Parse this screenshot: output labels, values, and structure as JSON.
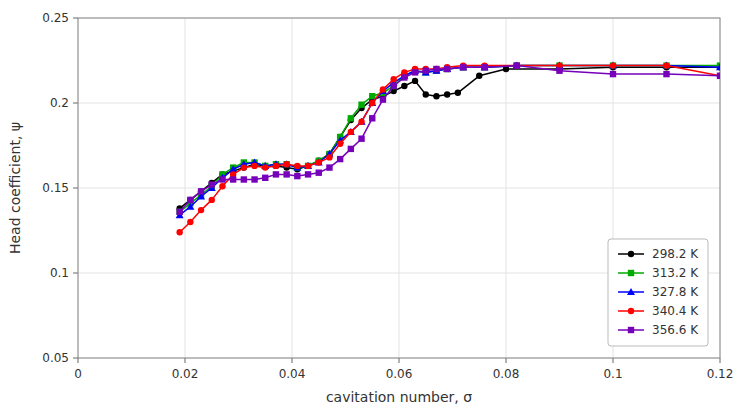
{
  "chart_data": {
    "type": "line",
    "xlabel": "cavitation number, σ",
    "ylabel": "Head coefficient, ψ",
    "xlim": [
      0,
      0.12
    ],
    "ylim": [
      0.05,
      0.25
    ],
    "xticks": [
      0,
      0.02,
      0.04,
      0.06,
      0.08,
      0.1,
      0.12
    ],
    "yticks": [
      0.05,
      0.1,
      0.15,
      0.2,
      0.25
    ],
    "grid": true,
    "legend": "lower right",
    "series": [
      {
        "name": "298.2 K",
        "color": "#000000",
        "marker": "circle",
        "x": [
          0.019,
          0.021,
          0.023,
          0.025,
          0.027,
          0.029,
          0.031,
          0.033,
          0.035,
          0.037,
          0.039,
          0.041,
          0.043,
          0.045,
          0.047,
          0.049,
          0.051,
          0.053,
          0.055,
          0.057,
          0.059,
          0.061,
          0.063,
          0.065,
          0.067,
          0.069,
          0.071,
          0.075,
          0.08,
          0.09,
          0.1,
          0.11,
          0.12
        ],
        "values": [
          0.138,
          0.143,
          0.148,
          0.153,
          0.158,
          0.16,
          0.162,
          0.164,
          0.163,
          0.163,
          0.162,
          0.161,
          0.163,
          0.166,
          0.17,
          0.18,
          0.19,
          0.197,
          0.202,
          0.204,
          0.207,
          0.21,
          0.213,
          0.205,
          0.204,
          0.205,
          0.206,
          0.216,
          0.22,
          0.22,
          0.221,
          0.221,
          0.221
        ]
      },
      {
        "name": "313.2 K",
        "color": "#00aa00",
        "marker": "square",
        "x": [
          0.019,
          0.021,
          0.023,
          0.025,
          0.027,
          0.029,
          0.031,
          0.033,
          0.035,
          0.037,
          0.039,
          0.041,
          0.043,
          0.045,
          0.047,
          0.049,
          0.051,
          0.053,
          0.055,
          0.057,
          0.059,
          0.061,
          0.063,
          0.065,
          0.067,
          0.069,
          0.072,
          0.076,
          0.082,
          0.09,
          0.1,
          0.11,
          0.12
        ],
        "values": [
          0.136,
          0.141,
          0.146,
          0.151,
          0.158,
          0.162,
          0.165,
          0.165,
          0.163,
          0.164,
          0.164,
          0.162,
          0.163,
          0.166,
          0.17,
          0.18,
          0.191,
          0.199,
          0.204,
          0.206,
          0.21,
          0.216,
          0.219,
          0.218,
          0.219,
          0.22,
          0.221,
          0.221,
          0.222,
          0.222,
          0.222,
          0.222,
          0.222
        ]
      },
      {
        "name": "327.8 K",
        "color": "#0000ff",
        "marker": "triangle",
        "x": [
          0.019,
          0.021,
          0.023,
          0.025,
          0.027,
          0.029,
          0.031,
          0.033,
          0.035,
          0.037,
          0.039,
          0.041,
          0.043,
          0.045,
          0.047,
          0.049,
          0.051,
          0.053,
          0.055,
          0.057,
          0.059,
          0.061,
          0.063,
          0.065,
          0.067,
          0.069,
          0.072,
          0.076,
          0.082,
          0.09,
          0.1,
          0.11,
          0.12
        ],
        "values": [
          0.134,
          0.139,
          0.145,
          0.15,
          0.156,
          0.161,
          0.164,
          0.165,
          0.163,
          0.164,
          0.164,
          0.162,
          0.163,
          0.165,
          0.17,
          0.178,
          0.183,
          0.189,
          0.2,
          0.207,
          0.212,
          0.216,
          0.219,
          0.218,
          0.219,
          0.22,
          0.221,
          0.221,
          0.222,
          0.222,
          0.222,
          0.222,
          0.221
        ]
      },
      {
        "name": "340.4 K",
        "color": "#ff0000",
        "marker": "circle",
        "x": [
          0.019,
          0.021,
          0.023,
          0.025,
          0.027,
          0.029,
          0.031,
          0.033,
          0.035,
          0.037,
          0.039,
          0.041,
          0.043,
          0.045,
          0.047,
          0.049,
          0.051,
          0.053,
          0.055,
          0.057,
          0.059,
          0.061,
          0.063,
          0.065,
          0.067,
          0.069,
          0.072,
          0.076,
          0.082,
          0.09,
          0.1,
          0.11,
          0.12
        ],
        "values": [
          0.124,
          0.13,
          0.137,
          0.143,
          0.151,
          0.158,
          0.162,
          0.163,
          0.162,
          0.163,
          0.164,
          0.163,
          0.163,
          0.165,
          0.168,
          0.176,
          0.183,
          0.189,
          0.2,
          0.208,
          0.214,
          0.218,
          0.22,
          0.22,
          0.22,
          0.221,
          0.222,
          0.222,
          0.222,
          0.222,
          0.222,
          0.222,
          0.216
        ]
      },
      {
        "name": "356.6 K",
        "color": "#7700bb",
        "marker": "square",
        "x": [
          0.019,
          0.021,
          0.023,
          0.025,
          0.027,
          0.029,
          0.031,
          0.033,
          0.035,
          0.037,
          0.039,
          0.041,
          0.043,
          0.045,
          0.047,
          0.049,
          0.051,
          0.053,
          0.055,
          0.057,
          0.059,
          0.061,
          0.063,
          0.065,
          0.067,
          0.069,
          0.072,
          0.076,
          0.082,
          0.09,
          0.1,
          0.11,
          0.12
        ],
        "values": [
          0.136,
          0.143,
          0.148,
          0.152,
          0.155,
          0.155,
          0.155,
          0.155,
          0.156,
          0.158,
          0.158,
          0.157,
          0.158,
          0.159,
          0.162,
          0.167,
          0.173,
          0.179,
          0.191,
          0.202,
          0.21,
          0.215,
          0.218,
          0.219,
          0.22,
          0.22,
          0.221,
          0.221,
          0.222,
          0.219,
          0.217,
          0.217,
          0.216
        ]
      }
    ]
  }
}
